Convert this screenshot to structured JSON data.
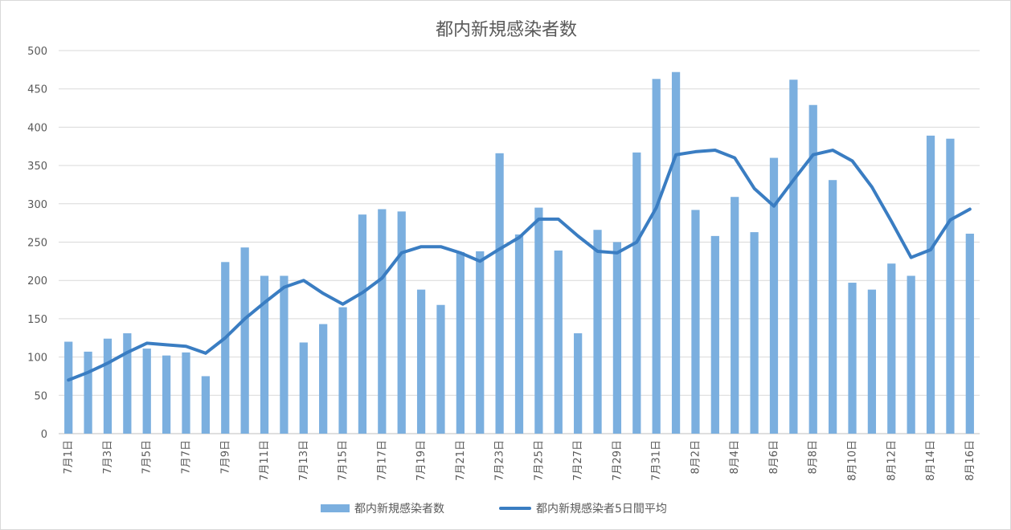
{
  "chart_data": {
    "type": "bar",
    "title": "都内新規感染者数",
    "xlabel": "",
    "ylabel": "",
    "ylim": [
      0,
      500
    ],
    "yticks": [
      0,
      50,
      100,
      150,
      200,
      250,
      300,
      350,
      400,
      450,
      500
    ],
    "grid": true,
    "legend_position": "bottom",
    "categories": [
      "7月1日",
      "7月2日",
      "7月3日",
      "7月4日",
      "7月5日",
      "7月6日",
      "7月7日",
      "7月8日",
      "7月9日",
      "7月10日",
      "7月11日",
      "7月12日",
      "7月13日",
      "7月14日",
      "7月15日",
      "7月16日",
      "7月17日",
      "7月18日",
      "7月19日",
      "7月20日",
      "7月21日",
      "7月22日",
      "7月23日",
      "7月24日",
      "7月25日",
      "7月26日",
      "7月27日",
      "7月28日",
      "7月29日",
      "7月30日",
      "7月31日",
      "8月1日",
      "8月2日",
      "8月3日",
      "8月4日",
      "8月5日",
      "8月6日",
      "8月7日",
      "8月8日",
      "8月9日",
      "8月10日",
      "8月11日",
      "8月12日",
      "8月13日",
      "8月14日",
      "8月15日",
      "8月16日"
    ],
    "tick_labels": [
      "7月1日",
      "7月3日",
      "7月5日",
      "7月7日",
      "7月9日",
      "7月11日",
      "7月13日",
      "7月15日",
      "7月17日",
      "7月19日",
      "7月21日",
      "7月23日",
      "7月25日",
      "7月27日",
      "7月29日",
      "7月31日",
      "8月2日",
      "8月4日",
      "8月6日",
      "8月8日",
      "8月10日",
      "8月12日",
      "8月14日",
      "8月16日"
    ],
    "series": [
      {
        "name": "都内新規感染者数",
        "kind": "bar",
        "color": "#7bafdf",
        "values": [
          120,
          107,
          124,
          131,
          111,
          102,
          106,
          75,
          224,
          243,
          206,
          206,
          119,
          143,
          165,
          286,
          293,
          290,
          188,
          168,
          237,
          238,
          366,
          260,
          295,
          239,
          131,
          266,
          250,
          367,
          463,
          472,
          292,
          258,
          309,
          263,
          360,
          462,
          429,
          331,
          197,
          188,
          222,
          206,
          389,
          385,
          261
        ]
      },
      {
        "name": "都内新規感染者5日間平均",
        "kind": "line",
        "color": "#3a7dc2",
        "values": [
          70,
          80,
          92,
          106,
          118,
          116,
          114,
          105,
          125,
          150,
          171,
          191,
          200,
          183,
          169,
          184,
          203,
          236,
          244,
          244,
          236,
          225,
          241,
          256,
          280,
          280,
          258,
          238,
          236,
          250,
          295,
          364,
          368,
          370,
          360,
          320,
          297,
          331,
          364,
          370,
          356,
          322,
          277,
          230,
          240,
          279,
          293
        ]
      }
    ]
  }
}
